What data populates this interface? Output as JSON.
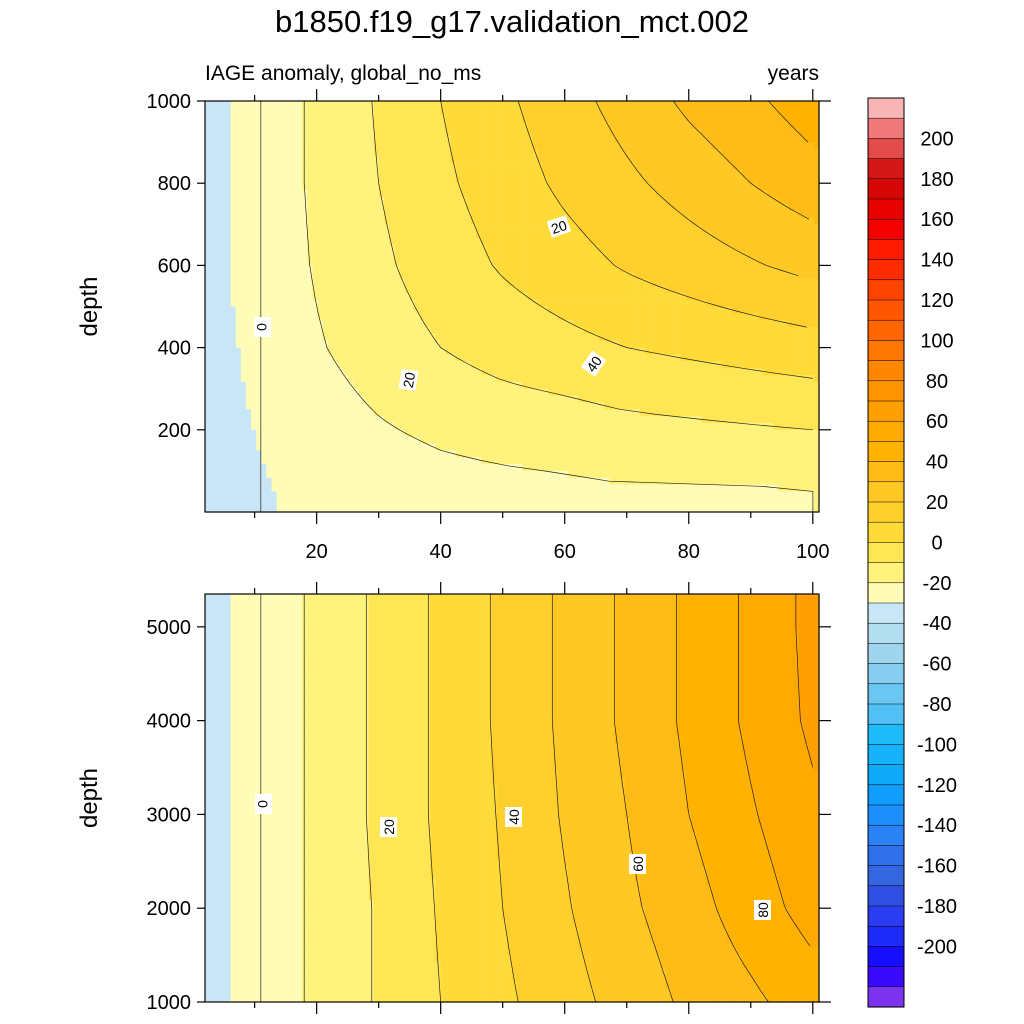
{
  "header": {
    "title": "b1850.f19_g17.validation_mct.002",
    "left_subtitle": "IAGE anomaly, global_no_ms",
    "right_subtitle": "years"
  },
  "chart_data": [
    {
      "type": "heatmap",
      "panel": "upper",
      "ylabel": "depth",
      "xlim": [
        2,
        101
      ],
      "ylim": [
        1000,
        0
      ],
      "x_ticks": [
        20,
        40,
        60,
        80,
        100
      ],
      "y_ticks": [
        200,
        400,
        600,
        800,
        1000
      ],
      "description_variable": "IAGE anomaly (years) vs time (years) and depth",
      "contour_levels_shown": [
        0,
        10,
        20,
        30,
        40,
        50,
        60,
        70,
        80
      ],
      "contour_labels": [
        "0",
        "20",
        "20",
        "40"
      ],
      "zero_contour_x": 11,
      "surface_value": 0,
      "x_samples": [
        2,
        10,
        20,
        30,
        40,
        50,
        60,
        70,
        80,
        90,
        100
      ],
      "depth_samples": [
        50,
        200,
        400,
        600,
        800,
        1000
      ],
      "values_approx": [
        [
          -2,
          -1,
          2,
          4,
          6,
          7,
          8,
          9,
          9,
          9,
          10
        ],
        [
          -2,
          0,
          5,
          9,
          12,
          14,
          15,
          17,
          18,
          19,
          20
        ],
        [
          -2,
          1,
          9,
          15,
          20,
          24,
          27,
          30,
          32,
          34,
          36
        ],
        [
          -2,
          2,
          11,
          18,
          25,
          31,
          36,
          41,
          45,
          49,
          53
        ],
        [
          -2,
          2,
          12,
          20,
          28,
          35,
          42,
          48,
          54,
          60,
          66
        ],
        [
          -2,
          2,
          12,
          21,
          30,
          38,
          46,
          54,
          62,
          68,
          75
        ]
      ]
    },
    {
      "type": "heatmap",
      "panel": "lower",
      "ylabel": "depth",
      "xlim": [
        2,
        101
      ],
      "ylim": [
        5350,
        1000
      ],
      "y_ticks": [
        1000,
        2000,
        3000,
        4000,
        5000
      ],
      "contour_levels_shown": [
        0,
        10,
        20,
        30,
        40,
        50,
        60,
        70,
        80,
        90
      ],
      "contour_labels": [
        "0",
        "20",
        "40",
        "60",
        "80"
      ],
      "zero_contour_x": 11,
      "x_samples": [
        2,
        10,
        20,
        30,
        40,
        50,
        60,
        70,
        80,
        90,
        100
      ],
      "depth_samples": [
        1000,
        2000,
        3000,
        4000,
        5000
      ],
      "values_approx": [
        [
          -2,
          2,
          12,
          21,
          30,
          38,
          46,
          54,
          62,
          68,
          75
        ],
        [
          -2,
          2,
          12,
          21,
          31,
          40,
          49,
          58,
          66,
          75,
          84
        ],
        [
          -2,
          2,
          12,
          22,
          32,
          41,
          51,
          60,
          70,
          79,
          88
        ],
        [
          -2,
          2,
          12,
          22,
          32,
          42,
          52,
          62,
          72,
          82,
          92
        ],
        [
          -2,
          2,
          12,
          22,
          32,
          42,
          52,
          62,
          72,
          82,
          93
        ]
      ]
    }
  ],
  "colorbar": {
    "labels": [
      "200",
      "180",
      "160",
      "140",
      "120",
      "100",
      "80",
      "60",
      "40",
      "20",
      "0",
      "-20",
      "-40",
      "-60",
      "-80",
      "-100",
      "-120",
      "-140",
      "-160",
      "-180",
      "-200"
    ],
    "colors": [
      "#f9b5b5",
      "#f07a7a",
      "#e34a4a",
      "#d41818",
      "#d60606",
      "#e80000",
      "#f40000",
      "#ff1b00",
      "#ff2c00",
      "#ff4400",
      "#ff5600",
      "#ff6600",
      "#ff7700",
      "#ff8600",
      "#ff9400",
      "#ffa000",
      "#ffaa00",
      "#ffb300",
      "#ffbc16",
      "#ffc824",
      "#ffd02d",
      "#ffdb3a",
      "#ffe655",
      "#fff27d",
      "#fffcb7",
      "#c8e6f5",
      "#b3def0",
      "#9fd6ee",
      "#86cdef",
      "#6cc6f2",
      "#52bff5",
      "#1fbaf9",
      "#16b3fa",
      "#0fa9fa",
      "#109dfb",
      "#1d8ffa",
      "#2a82f4",
      "#3070ea",
      "#3466e0",
      "#3050e4",
      "#2a3df0",
      "#1f2bf8",
      "#180eff",
      "#3a0aff",
      "#7c33f0"
    ]
  }
}
